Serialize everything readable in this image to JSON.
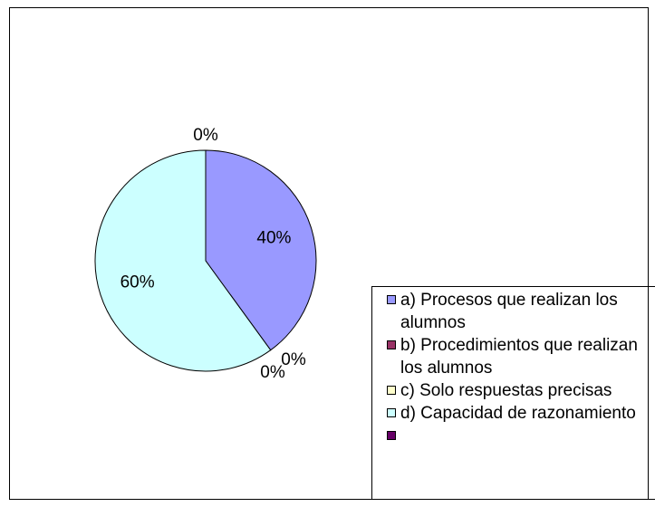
{
  "chart_data": {
    "type": "pie",
    "categories": [
      "a) Procesos que realizan los alumnos",
      "b) Procedimientos que realizan los alumnos",
      "c) Solo respuestas precisas",
      "d) Capacidad de razonamiento",
      null
    ],
    "values": [
      40,
      0,
      0,
      60,
      0
    ],
    "value_labels": [
      "40%",
      "0%",
      "0%",
      "60%",
      "0%"
    ],
    "colors": [
      "#9999ff",
      "#993366",
      "#ffffcc",
      "#ccffff",
      "#660066"
    ],
    "legend": "right"
  }
}
